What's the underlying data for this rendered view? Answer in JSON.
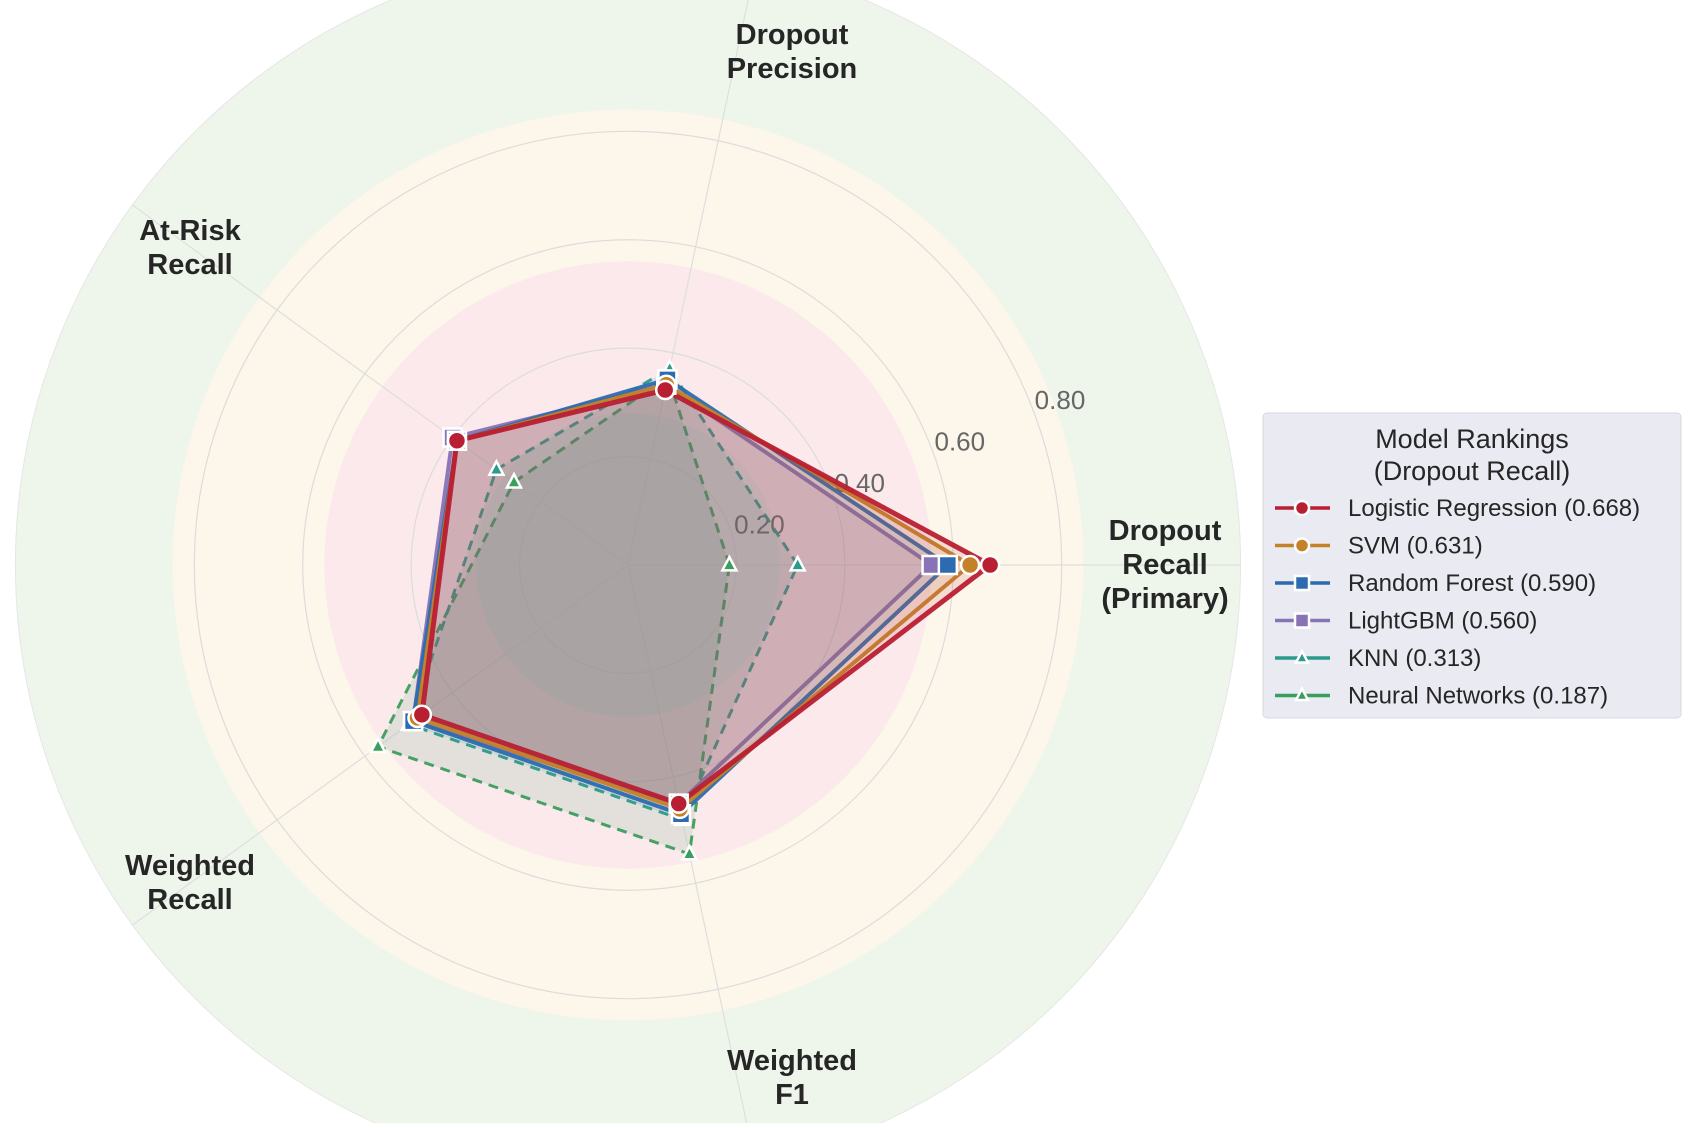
{
  "chart_data": {
    "type": "radar",
    "axes": [
      [
        "Dropout",
        "Recall",
        "(Primary)"
      ],
      [
        "Dropout",
        "Precision"
      ],
      [
        "At-Risk",
        "Recall"
      ],
      [
        "Weighted",
        "Recall"
      ],
      [
        "Weighted",
        "F1"
      ]
    ],
    "axis_angles_deg": [
      0,
      78,
      144,
      216,
      282
    ],
    "rlim": [
      0,
      0.95
    ],
    "rticks": [
      0.2,
      0.4,
      0.6,
      0.8
    ],
    "rtick_labels": [
      "0.20",
      "0.40",
      "0.60",
      "0.80"
    ],
    "background_bands": [
      {
        "from": 0.0,
        "to": 0.28,
        "color": "#e8e8e8"
      },
      {
        "from": 0.28,
        "to": 0.56,
        "color": "#fbe9ec"
      },
      {
        "from": 0.56,
        "to": 0.84,
        "color": "#fdf6ea"
      },
      {
        "from": 0.84,
        "to": 1.13,
        "color": "#eef6ec"
      }
    ],
    "legend": {
      "title": [
        "Model Rankings",
        "(Dropout Recall)"
      ],
      "position": "right"
    },
    "series": [
      {
        "name": "Neural Networks (0.187)",
        "label": "Neural Networks (0.187)",
        "values": [
          0.187,
          0.355,
          0.26,
          0.57,
          0.545
        ],
        "color": "#3a9e5c",
        "marker": "triangle",
        "dashed": true
      },
      {
        "name": "KNN (0.313)",
        "label": "KNN (0.313)",
        "values": [
          0.313,
          0.37,
          0.3,
          0.5,
          0.48
        ],
        "color": "#2a9a8a",
        "marker": "triangle",
        "dashed": true
      },
      {
        "name": "LightGBM (0.560)",
        "label": "LightGBM (0.560)",
        "values": [
          0.56,
          0.34,
          0.4,
          0.49,
          0.45
        ],
        "color": "#8873b5",
        "marker": "square",
        "dashed": false
      },
      {
        "name": "Random Forest (0.590)",
        "label": "Random Forest (0.590)",
        "values": [
          0.59,
          0.35,
          0.39,
          0.49,
          0.47
        ],
        "color": "#2c6bb0",
        "marker": "square",
        "dashed": false
      },
      {
        "name": "SVM (0.631)",
        "label": "SVM (0.631)",
        "values": [
          0.631,
          0.34,
          0.39,
          0.48,
          0.46
        ],
        "color": "#c48228",
        "marker": "circle",
        "dashed": false
      },
      {
        "name": "Logistic Regression (0.668)",
        "label": "Logistic Regression (0.668)",
        "values": [
          0.668,
          0.33,
          0.39,
          0.47,
          0.45
        ],
        "color": "#b81f32",
        "marker": "circle",
        "dashed": false
      }
    ],
    "legend_order": [
      5,
      4,
      3,
      2,
      1,
      0
    ]
  }
}
